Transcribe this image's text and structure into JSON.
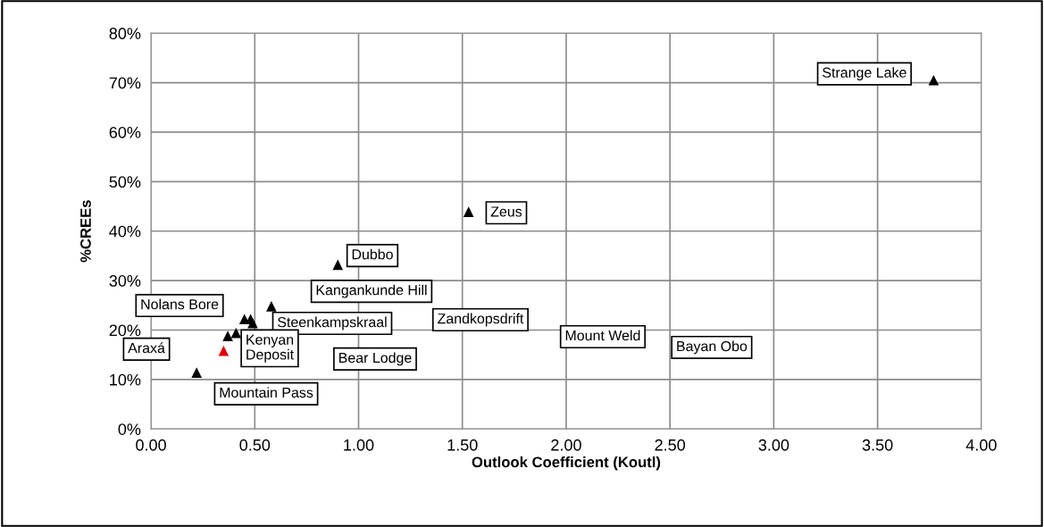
{
  "chart_data": {
    "type": "scatter",
    "xlabel": "Outlook Coefficient (Koutl)",
    "ylabel": "%CREEs",
    "x": [
      3.77,
      1.53,
      0.9,
      0.58,
      0.45,
      0.48,
      0.49,
      0.37,
      0.41,
      0.35,
      0.22
    ],
    "values": [
      70.5,
      43.9,
      33.2,
      24.8,
      22.2,
      22.2,
      21.4,
      18.8,
      19.4,
      15.8,
      11.4
    ],
    "colors": [
      "#000000",
      "#000000",
      "#000000",
      "#000000",
      "#000000",
      "#000000",
      "#000000",
      "#000000",
      "#000000",
      "#e00000",
      "#000000"
    ],
    "marker": "triangle",
    "grid": true,
    "legend": false,
    "xlim": [
      0,
      4
    ],
    "ylim": [
      0,
      80
    ],
    "xticks": [
      {
        "value": 0,
        "label": "0.00"
      },
      {
        "value": 0.5,
        "label": "0.50"
      },
      {
        "value": 1,
        "label": "1.00"
      },
      {
        "value": 1.5,
        "label": "1.50"
      },
      {
        "value": 2,
        "label": "2.00"
      },
      {
        "value": 2.5,
        "label": "2.50"
      },
      {
        "value": 3,
        "label": "3.00"
      },
      {
        "value": 3.5,
        "label": "3.50"
      },
      {
        "value": 4,
        "label": "4.00"
      }
    ],
    "yticks": [
      {
        "value": 0,
        "label": "0%"
      },
      {
        "value": 10,
        "label": "10%"
      },
      {
        "value": 20,
        "label": "20%"
      },
      {
        "value": 30,
        "label": "30%"
      },
      {
        "value": 40,
        "label": "40%"
      },
      {
        "value": 50,
        "label": "50%"
      },
      {
        "value": 60,
        "label": "60%"
      },
      {
        "value": 70,
        "label": "70%"
      },
      {
        "value": 80,
        "label": "80%"
      }
    ],
    "annotations": [
      "Strange Lake",
      "Zeus",
      "Dubbo",
      "Kangankunde Hill",
      "Nolans Bore",
      "Steenkampskraal",
      "Zandkopsdrift",
      "Mount Weld",
      "Bayan Obo",
      "Araxá",
      "Kenyan\nDeposit",
      "Bear Lodge",
      "Mountain Pass"
    ]
  }
}
